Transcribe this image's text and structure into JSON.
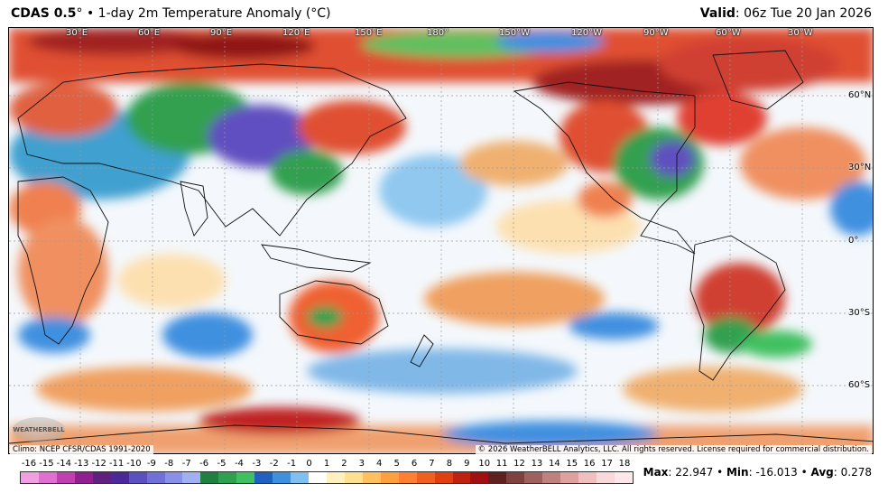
{
  "header": {
    "model": "CDAS 0.5",
    "degree": "°",
    "bullet": "•",
    "product": "1-day 2m Temperature Anomaly (°C)",
    "valid_label": "Valid",
    "valid_value": ": 06z Tue 20 Jan 2026"
  },
  "map": {
    "lon_labels": [
      "30°E",
      "60°E",
      "90°E",
      "120°E",
      "150°E",
      "180°",
      "150°W",
      "120°W",
      "90°W",
      "60°W",
      "30°W"
    ],
    "lat_labels": [
      "60°N",
      "30°N",
      "0°",
      "30°S",
      "60°S"
    ],
    "colors": {
      "deep_red": "#8b1a1a",
      "red": "#d7301f",
      "orange": "#f46d43",
      "light_orange": "#fdae61",
      "pale": "#fee8c8",
      "near_zero": "#f4f8fc",
      "light_blue": "#abd9e9",
      "blue": "#4575b4",
      "green": "#1a9641",
      "purple": "#6a51a3"
    }
  },
  "footer": {
    "climo": "Climo: NCEP CFSR/CDAS 1991-2020",
    "copyright": "© 2026 WeatherBELL Analytics, LLC. All rights reserved. License required for commercial distribution.",
    "logo_text": "WEATHERBELL"
  },
  "colorbar": {
    "labels": [
      "-16",
      "-15",
      "-14",
      "-13",
      "-12",
      "-11",
      "-10",
      "-9",
      "-8",
      "-7",
      "-6",
      "-5",
      "-4",
      "-3",
      "-2",
      "-1",
      "0",
      "1",
      "2",
      "3",
      "4",
      "5",
      "6",
      "7",
      "8",
      "9",
      "10",
      "11",
      "12",
      "13",
      "14",
      "15",
      "16",
      "17",
      "18"
    ],
    "colors": [
      "#f0a0e0",
      "#e070d0",
      "#c040b0",
      "#902090",
      "#602080",
      "#4a2a9a",
      "#5a50c0",
      "#7070d8",
      "#8a90e8",
      "#a0b0f0",
      "#208040",
      "#30a050",
      "#40c060",
      "#2060c0",
      "#4090e0",
      "#80c0f0",
      "#ffffff",
      "#fff0c0",
      "#ffe090",
      "#ffc060",
      "#ffa040",
      "#ff8030",
      "#f06020",
      "#e04010",
      "#c02010",
      "#a01010",
      "#602020",
      "#804040",
      "#a06060",
      "#c08080",
      "#e0a0a0",
      "#f0c0c0",
      "#f8d8d8",
      "#fce8e8"
    ]
  },
  "stats": {
    "max_label": "Max",
    "max_value": ": 22.947",
    "min_label": "Min",
    "min_value": ": -16.013",
    "avg_label": "Avg",
    "avg_value": ": 0.278",
    "sep": " • "
  }
}
